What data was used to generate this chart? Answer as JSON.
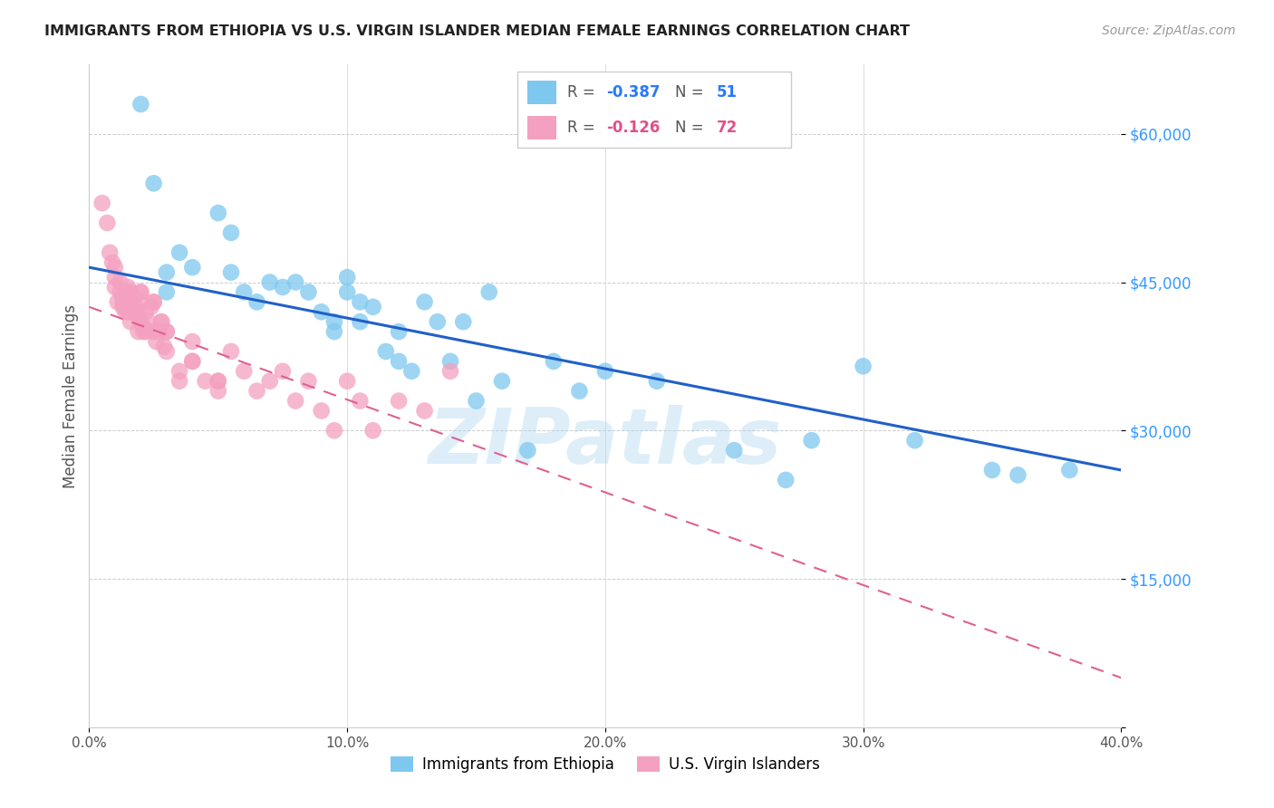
{
  "title": "IMMIGRANTS FROM ETHIOPIA VS U.S. VIRGIN ISLANDER MEDIAN FEMALE EARNINGS CORRELATION CHART",
  "source": "Source: ZipAtlas.com",
  "ylabel": "Median Female Earnings",
  "y_ticks": [
    0,
    15000,
    30000,
    45000,
    60000
  ],
  "y_tick_labels": [
    "",
    "$15,000",
    "$30,000",
    "$45,000",
    "$60,000"
  ],
  "x_ticks": [
    0.0,
    0.1,
    0.2,
    0.3,
    0.4
  ],
  "x_tick_labels": [
    "0.0%",
    "10.0%",
    "20.0%",
    "30.0%",
    "40.0%"
  ],
  "xlim": [
    0.0,
    0.4
  ],
  "ylim": [
    0,
    67000
  ],
  "blue_color": "#7ec8f0",
  "pink_color": "#f4a0c0",
  "blue_line_color": "#2060c8",
  "pink_line_color": "#e06090",
  "watermark": "ZIPatlas",
  "blue_x": [
    0.02,
    0.025,
    0.03,
    0.03,
    0.035,
    0.04,
    0.05,
    0.055,
    0.055,
    0.06,
    0.065,
    0.07,
    0.075,
    0.08,
    0.085,
    0.09,
    0.095,
    0.095,
    0.1,
    0.1,
    0.105,
    0.105,
    0.11,
    0.115,
    0.12,
    0.12,
    0.125,
    0.13,
    0.135,
    0.14,
    0.145,
    0.15,
    0.155,
    0.16,
    0.17,
    0.18,
    0.19,
    0.2,
    0.22,
    0.25,
    0.27,
    0.28,
    0.3,
    0.32,
    0.35,
    0.36,
    0.38
  ],
  "blue_y": [
    63000,
    55000,
    46000,
    44000,
    48000,
    46500,
    52000,
    50000,
    46000,
    44000,
    43000,
    45000,
    44500,
    45000,
    44000,
    42000,
    41000,
    40000,
    45500,
    44000,
    43000,
    41000,
    42500,
    38000,
    40000,
    37000,
    36000,
    43000,
    41000,
    37000,
    41000,
    33000,
    44000,
    35000,
    28000,
    37000,
    34000,
    36000,
    35000,
    28000,
    25000,
    29000,
    36500,
    29000,
    26000,
    25500,
    26000
  ],
  "pink_x": [
    0.005,
    0.007,
    0.008,
    0.009,
    0.01,
    0.01,
    0.01,
    0.011,
    0.012,
    0.012,
    0.013,
    0.013,
    0.013,
    0.014,
    0.014,
    0.014,
    0.015,
    0.015,
    0.015,
    0.016,
    0.016,
    0.016,
    0.017,
    0.017,
    0.018,
    0.018,
    0.019,
    0.019,
    0.02,
    0.02,
    0.02,
    0.021,
    0.021,
    0.022,
    0.022,
    0.023,
    0.024,
    0.025,
    0.025,
    0.026,
    0.027,
    0.028,
    0.029,
    0.03,
    0.03,
    0.035,
    0.04,
    0.045,
    0.05,
    0.055,
    0.06,
    0.065,
    0.07,
    0.075,
    0.08,
    0.085,
    0.09,
    0.095,
    0.1,
    0.105,
    0.11,
    0.12,
    0.13,
    0.14,
    0.05,
    0.035,
    0.04,
    0.025,
    0.03,
    0.02,
    0.028,
    0.04,
    0.05
  ],
  "pink_y": [
    53000,
    51000,
    48000,
    47000,
    46500,
    45500,
    44500,
    43000,
    45000,
    44000,
    43500,
    43000,
    42500,
    44000,
    43000,
    42000,
    44500,
    43500,
    42000,
    44000,
    43000,
    41000,
    43500,
    42000,
    42500,
    42000,
    41500,
    40000,
    44000,
    43000,
    41000,
    40500,
    40000,
    42000,
    40000,
    41000,
    42500,
    43000,
    40000,
    39000,
    40000,
    41000,
    38500,
    40000,
    38000,
    36000,
    37000,
    35000,
    35000,
    38000,
    36000,
    34000,
    35000,
    36000,
    33000,
    35000,
    32000,
    30000,
    35000,
    33000,
    30000,
    33000,
    32000,
    36000,
    34000,
    35000,
    37000,
    43000,
    40000,
    44000,
    41000,
    39000,
    35000
  ],
  "blue_trend_x": [
    0.0,
    0.4
  ],
  "blue_trend_y": [
    46500,
    26000
  ],
  "pink_trend_x": [
    0.0,
    0.4
  ],
  "pink_trend_y": [
    42500,
    5000
  ],
  "legend_blue_r": "-0.387",
  "legend_blue_n": "51",
  "legend_pink_r": "-0.126",
  "legend_pink_n": "72"
}
